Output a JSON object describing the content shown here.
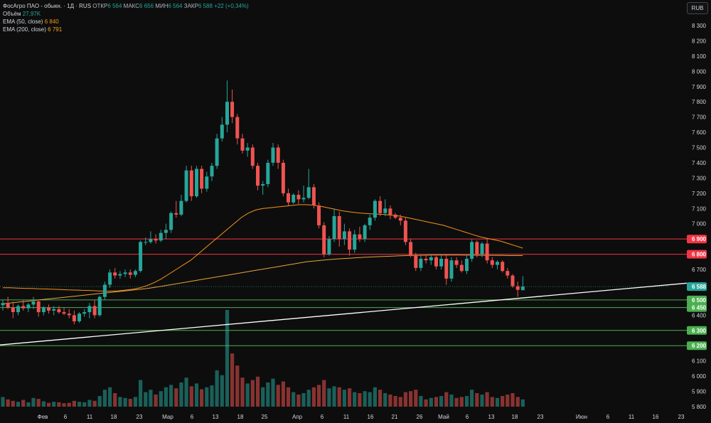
{
  "legend": {
    "title": "ФосАгро ПАО - обыкн. · 1Д · RUS",
    "open_label": "ОТКР",
    "open_value": "6 564",
    "high_label": "МАКС",
    "high_value": "6 656",
    "low_label": "МИН",
    "low_value": "6 564",
    "close_label": "ЗАКР",
    "close_value": "6 588",
    "change": "+22 (+0,34%)",
    "volume_label": "Объём",
    "volume_value": "27,97K",
    "ema50_label": "EMA (50, close)",
    "ema50_value": "6 840",
    "ema200_label": "EMA (200, close)",
    "ema200_value": "6 791"
  },
  "currency_button": "RUB",
  "colors": {
    "up": "#26a69a",
    "down": "#ef5350",
    "ema50": "#f7931a",
    "ema200": "#e8a33c",
    "resistance": "#f23645",
    "support": "#4caf50",
    "trendline": "#ffffff",
    "background": "#0d0d0d"
  },
  "chart_data": {
    "type": "candlestick",
    "ylim": [
      5800,
      8300
    ],
    "y_ticks": [
      5800,
      5900,
      6000,
      6100,
      6200,
      6300,
      6400,
      6500,
      6600,
      6700,
      6800,
      6900,
      7000,
      7100,
      7200,
      7300,
      7400,
      7500,
      7600,
      7700,
      7800,
      7900,
      8000,
      8100,
      8200,
      8300
    ],
    "y_tick_labels": [
      "5 800",
      "5 900",
      "6 000",
      "6 100",
      "6 200",
      "6 300",
      "6 400",
      "6 500",
      "6 600",
      "6 700",
      "6 800",
      "6 900",
      "7 000",
      "7 100",
      "7 200",
      "7 300",
      "7 400",
      "7 500",
      "7 600",
      "7 700",
      "7 800",
      "7 900",
      "8 000",
      "8 100",
      "8 200",
      "8 300"
    ],
    "x_tick_labels": [
      "Фев",
      "6",
      "11",
      "18",
      "23",
      "Мар",
      "6",
      "13",
      "18",
      "25",
      "Апр",
      "6",
      "11",
      "16",
      "21",
      "26",
      "Май",
      "6",
      "13",
      "18",
      "23",
      "Июн",
      "6",
      "11",
      "16",
      "23"
    ],
    "horizontal_levels": [
      {
        "value": 6900,
        "label": "6 900",
        "kind": "resistance"
      },
      {
        "value": 6800,
        "label": "6 800",
        "kind": "resistance"
      },
      {
        "value": 6500,
        "label": "6 500",
        "kind": "support"
      },
      {
        "value": 6450,
        "label": "6 450",
        "kind": "support"
      },
      {
        "value": 6300,
        "label": "6 300",
        "kind": "support"
      },
      {
        "value": 6200,
        "label": "6 200",
        "kind": "support"
      }
    ],
    "last_price": {
      "value": 6588,
      "label": "6 588"
    },
    "trendline": {
      "start": 6205,
      "end": 6590,
      "end_extended": 6610
    },
    "ema50": [
      6580,
      6580,
      6578,
      6576,
      6575,
      6573,
      6572,
      6570,
      6568,
      6566,
      6565,
      6563,
      6562,
      6560,
      6558,
      6558,
      6560,
      6565,
      6570,
      6580,
      6595,
      6615,
      6640,
      6670,
      6700,
      6730,
      6760,
      6800,
      6840,
      6880,
      6920,
      6960,
      7000,
      7040,
      7070,
      7090,
      7100,
      7105,
      7110,
      7115,
      7120,
      7125,
      7125,
      7122,
      7115,
      7105,
      7095,
      7085,
      7078,
      7072,
      7068,
      7065,
      7063,
      7060,
      7055,
      7050,
      7040,
      7030,
      7020,
      7010,
      7000,
      6990,
      6975,
      6960,
      6945,
      6930,
      6915,
      6905,
      6895,
      6885,
      6870,
      6855,
      6840
    ],
    "ema200": [
      6475,
      6480,
      6485,
      6490,
      6495,
      6500,
      6505,
      6510,
      6515,
      6520,
      6525,
      6530,
      6535,
      6540,
      6545,
      6550,
      6555,
      6560,
      6565,
      6570,
      6575,
      6582,
      6590,
      6598,
      6606,
      6614,
      6622,
      6630,
      6638,
      6646,
      6654,
      6662,
      6670,
      6678,
      6686,
      6694,
      6702,
      6710,
      6718,
      6726,
      6734,
      6742,
      6750,
      6755,
      6760,
      6764,
      6768,
      6771,
      6774,
      6777,
      6780,
      6782,
      6784,
      6786,
      6788,
      6790,
      6791,
      6792,
      6793,
      6794,
      6795,
      6795,
      6795,
      6795,
      6794,
      6794,
      6793,
      6793,
      6792,
      6792,
      6791,
      6791,
      6791
    ],
    "candles": [
      {
        "o": 6465,
        "h": 6500,
        "l": 6430,
        "c": 6480,
        "v": 20
      },
      {
        "o": 6480,
        "h": 6520,
        "l": 6440,
        "c": 6450,
        "v": 15
      },
      {
        "o": 6450,
        "h": 6490,
        "l": 6380,
        "c": 6420,
        "v": 12
      },
      {
        "o": 6420,
        "h": 6470,
        "l": 6400,
        "c": 6460,
        "v": 10
      },
      {
        "o": 6460,
        "h": 6500,
        "l": 6430,
        "c": 6445,
        "v": 14
      },
      {
        "o": 6445,
        "h": 6480,
        "l": 6420,
        "c": 6470,
        "v": 9
      },
      {
        "o": 6470,
        "h": 6520,
        "l": 6440,
        "c": 6490,
        "v": 18
      },
      {
        "o": 6490,
        "h": 6500,
        "l": 6390,
        "c": 6420,
        "v": 16
      },
      {
        "o": 6420,
        "h": 6460,
        "l": 6400,
        "c": 6450,
        "v": 11
      },
      {
        "o": 6450,
        "h": 6470,
        "l": 6410,
        "c": 6430,
        "v": 8
      },
      {
        "o": 6430,
        "h": 6460,
        "l": 6400,
        "c": 6440,
        "v": 10
      },
      {
        "o": 6440,
        "h": 6460,
        "l": 6410,
        "c": 6420,
        "v": 9
      },
      {
        "o": 6420,
        "h": 6450,
        "l": 6400,
        "c": 6410,
        "v": 7
      },
      {
        "o": 6410,
        "h": 6440,
        "l": 6380,
        "c": 6400,
        "v": 8
      },
      {
        "o": 6400,
        "h": 6430,
        "l": 6340,
        "c": 6360,
        "v": 12
      },
      {
        "o": 6360,
        "h": 6420,
        "l": 6350,
        "c": 6410,
        "v": 10
      },
      {
        "o": 6410,
        "h": 6440,
        "l": 6390,
        "c": 6420,
        "v": 9
      },
      {
        "o": 6420,
        "h": 6480,
        "l": 6380,
        "c": 6460,
        "v": 14
      },
      {
        "o": 6460,
        "h": 6500,
        "l": 6380,
        "c": 6400,
        "v": 12
      },
      {
        "o": 6400,
        "h": 6530,
        "l": 6390,
        "c": 6520,
        "v": 22
      },
      {
        "o": 6520,
        "h": 6620,
        "l": 6500,
        "c": 6600,
        "v": 35
      },
      {
        "o": 6600,
        "h": 6700,
        "l": 6580,
        "c": 6680,
        "v": 40
      },
      {
        "o": 6680,
        "h": 6710,
        "l": 6640,
        "c": 6660,
        "v": 28
      },
      {
        "o": 6660,
        "h": 6690,
        "l": 6640,
        "c": 6670,
        "v": 20
      },
      {
        "o": 6670,
        "h": 6700,
        "l": 6650,
        "c": 6680,
        "v": 18
      },
      {
        "o": 6680,
        "h": 6700,
        "l": 6640,
        "c": 6665,
        "v": 16
      },
      {
        "o": 6665,
        "h": 6700,
        "l": 6650,
        "c": 6690,
        "v": 20
      },
      {
        "o": 6690,
        "h": 6890,
        "l": 6680,
        "c": 6880,
        "v": 55
      },
      {
        "o": 6880,
        "h": 6910,
        "l": 6860,
        "c": 6880,
        "v": 30
      },
      {
        "o": 6880,
        "h": 6950,
        "l": 6870,
        "c": 6900,
        "v": 35
      },
      {
        "o": 6900,
        "h": 6930,
        "l": 6870,
        "c": 6890,
        "v": 25
      },
      {
        "o": 6890,
        "h": 6960,
        "l": 6880,
        "c": 6940,
        "v": 32
      },
      {
        "o": 6940,
        "h": 7000,
        "l": 6900,
        "c": 6960,
        "v": 40
      },
      {
        "o": 6960,
        "h": 7080,
        "l": 6940,
        "c": 7070,
        "v": 45
      },
      {
        "o": 7070,
        "h": 7150,
        "l": 7040,
        "c": 7060,
        "v": 38
      },
      {
        "o": 7060,
        "h": 7190,
        "l": 7050,
        "c": 7150,
        "v": 50
      },
      {
        "o": 7150,
        "h": 7380,
        "l": 7140,
        "c": 7350,
        "v": 60
      },
      {
        "o": 7350,
        "h": 7380,
        "l": 7150,
        "c": 7180,
        "v": 42
      },
      {
        "o": 7180,
        "h": 7380,
        "l": 7170,
        "c": 7360,
        "v": 48
      },
      {
        "o": 7360,
        "h": 7380,
        "l": 7200,
        "c": 7230,
        "v": 36
      },
      {
        "o": 7230,
        "h": 7340,
        "l": 7210,
        "c": 7310,
        "v": 40
      },
      {
        "o": 7310,
        "h": 7400,
        "l": 7280,
        "c": 7380,
        "v": 44
      },
      {
        "o": 7380,
        "h": 7590,
        "l": 7360,
        "c": 7560,
        "v": 75
      },
      {
        "o": 7560,
        "h": 7700,
        "l": 7540,
        "c": 7650,
        "v": 65
      },
      {
        "o": 7650,
        "h": 7940,
        "l": 7600,
        "c": 7800,
        "v": 200
      },
      {
        "o": 7800,
        "h": 7880,
        "l": 7660,
        "c": 7700,
        "v": 110
      },
      {
        "o": 7700,
        "h": 7720,
        "l": 7520,
        "c": 7560,
        "v": 85
      },
      {
        "o": 7560,
        "h": 7590,
        "l": 7460,
        "c": 7480,
        "v": 60
      },
      {
        "o": 7480,
        "h": 7530,
        "l": 7440,
        "c": 7500,
        "v": 48
      },
      {
        "o": 7500,
        "h": 7520,
        "l": 7360,
        "c": 7380,
        "v": 55
      },
      {
        "o": 7380,
        "h": 7400,
        "l": 7220,
        "c": 7250,
        "v": 62
      },
      {
        "o": 7250,
        "h": 7280,
        "l": 7190,
        "c": 7260,
        "v": 40
      },
      {
        "o": 7260,
        "h": 7420,
        "l": 7240,
        "c": 7400,
        "v": 50
      },
      {
        "o": 7400,
        "h": 7530,
        "l": 7380,
        "c": 7500,
        "v": 58
      },
      {
        "o": 7500,
        "h": 7520,
        "l": 7360,
        "c": 7400,
        "v": 45
      },
      {
        "o": 7400,
        "h": 7420,
        "l": 7180,
        "c": 7200,
        "v": 52
      },
      {
        "o": 7200,
        "h": 7230,
        "l": 7120,
        "c": 7140,
        "v": 40
      },
      {
        "o": 7140,
        "h": 7200,
        "l": 7130,
        "c": 7190,
        "v": 30
      },
      {
        "o": 7190,
        "h": 7220,
        "l": 7130,
        "c": 7160,
        "v": 25
      },
      {
        "o": 7160,
        "h": 7250,
        "l": 7140,
        "c": 7170,
        "v": 28
      },
      {
        "o": 7170,
        "h": 7360,
        "l": 7160,
        "c": 7240,
        "v": 35
      },
      {
        "o": 7240,
        "h": 7260,
        "l": 7100,
        "c": 7120,
        "v": 40
      },
      {
        "o": 7120,
        "h": 7140,
        "l": 6970,
        "c": 6990,
        "v": 45
      },
      {
        "o": 6990,
        "h": 7010,
        "l": 6780,
        "c": 6800,
        "v": 55
      },
      {
        "o": 6800,
        "h": 6920,
        "l": 6790,
        "c": 6900,
        "v": 38
      },
      {
        "o": 6900,
        "h": 7100,
        "l": 6880,
        "c": 7050,
        "v": 42
      },
      {
        "o": 7050,
        "h": 7080,
        "l": 6850,
        "c": 6900,
        "v": 40
      },
      {
        "o": 6900,
        "h": 7000,
        "l": 6860,
        "c": 6950,
        "v": 35
      },
      {
        "o": 6950,
        "h": 6970,
        "l": 6790,
        "c": 6830,
        "v": 38
      },
      {
        "o": 6830,
        "h": 6960,
        "l": 6810,
        "c": 6930,
        "v": 30
      },
      {
        "o": 6930,
        "h": 6980,
        "l": 6880,
        "c": 6900,
        "v": 28
      },
      {
        "o": 6900,
        "h": 7000,
        "l": 6880,
        "c": 6990,
        "v": 32
      },
      {
        "o": 6990,
        "h": 7060,
        "l": 6960,
        "c": 7040,
        "v": 30
      },
      {
        "o": 7040,
        "h": 7160,
        "l": 7020,
        "c": 7150,
        "v": 40
      },
      {
        "o": 7150,
        "h": 7180,
        "l": 7050,
        "c": 7070,
        "v": 35
      },
      {
        "o": 7070,
        "h": 7160,
        "l": 7050,
        "c": 7100,
        "v": 28
      },
      {
        "o": 7100,
        "h": 7120,
        "l": 7030,
        "c": 7060,
        "v": 25
      },
      {
        "o": 7060,
        "h": 7070,
        "l": 7030,
        "c": 7040,
        "v": 22
      },
      {
        "o": 7040,
        "h": 7060,
        "l": 6990,
        "c": 7020,
        "v": 20
      },
      {
        "o": 7020,
        "h": 7040,
        "l": 6860,
        "c": 6880,
        "v": 30
      },
      {
        "o": 6880,
        "h": 6900,
        "l": 6780,
        "c": 6790,
        "v": 32
      },
      {
        "o": 6790,
        "h": 6810,
        "l": 6690,
        "c": 6710,
        "v": 35
      },
      {
        "o": 6710,
        "h": 6790,
        "l": 6690,
        "c": 6770,
        "v": 22
      },
      {
        "o": 6770,
        "h": 6790,
        "l": 6740,
        "c": 6760,
        "v": 15
      },
      {
        "o": 6760,
        "h": 6800,
        "l": 6730,
        "c": 6780,
        "v": 18
      },
      {
        "o": 6780,
        "h": 6790,
        "l": 6700,
        "c": 6720,
        "v": 20
      },
      {
        "o": 6720,
        "h": 6800,
        "l": 6700,
        "c": 6770,
        "v": 22
      },
      {
        "o": 6770,
        "h": 6800,
        "l": 6600,
        "c": 6640,
        "v": 30
      },
      {
        "o": 6640,
        "h": 6780,
        "l": 6620,
        "c": 6760,
        "v": 25
      },
      {
        "o": 6760,
        "h": 6780,
        "l": 6710,
        "c": 6730,
        "v": 18
      },
      {
        "o": 6730,
        "h": 6760,
        "l": 6680,
        "c": 6690,
        "v": 20
      },
      {
        "o": 6690,
        "h": 6790,
        "l": 6670,
        "c": 6770,
        "v": 22
      },
      {
        "o": 6770,
        "h": 6900,
        "l": 6750,
        "c": 6880,
        "v": 35
      },
      {
        "o": 6880,
        "h": 6890,
        "l": 6780,
        "c": 6800,
        "v": 28
      },
      {
        "o": 6800,
        "h": 6880,
        "l": 6780,
        "c": 6870,
        "v": 25
      },
      {
        "o": 6870,
        "h": 6900,
        "l": 6740,
        "c": 6760,
        "v": 30
      },
      {
        "o": 6760,
        "h": 6780,
        "l": 6710,
        "c": 6730,
        "v": 20
      },
      {
        "o": 6730,
        "h": 6760,
        "l": 6700,
        "c": 6750,
        "v": 18
      },
      {
        "o": 6750,
        "h": 6760,
        "l": 6680,
        "c": 6690,
        "v": 22
      },
      {
        "o": 6690,
        "h": 6710,
        "l": 6640,
        "c": 6660,
        "v": 25
      },
      {
        "o": 6660,
        "h": 6670,
        "l": 6580,
        "c": 6590,
        "v": 28
      },
      {
        "o": 6590,
        "h": 6620,
        "l": 6520,
        "c": 6566,
        "v": 20
      },
      {
        "o": 6564,
        "h": 6656,
        "l": 6564,
        "c": 6588,
        "v": 15
      }
    ]
  }
}
